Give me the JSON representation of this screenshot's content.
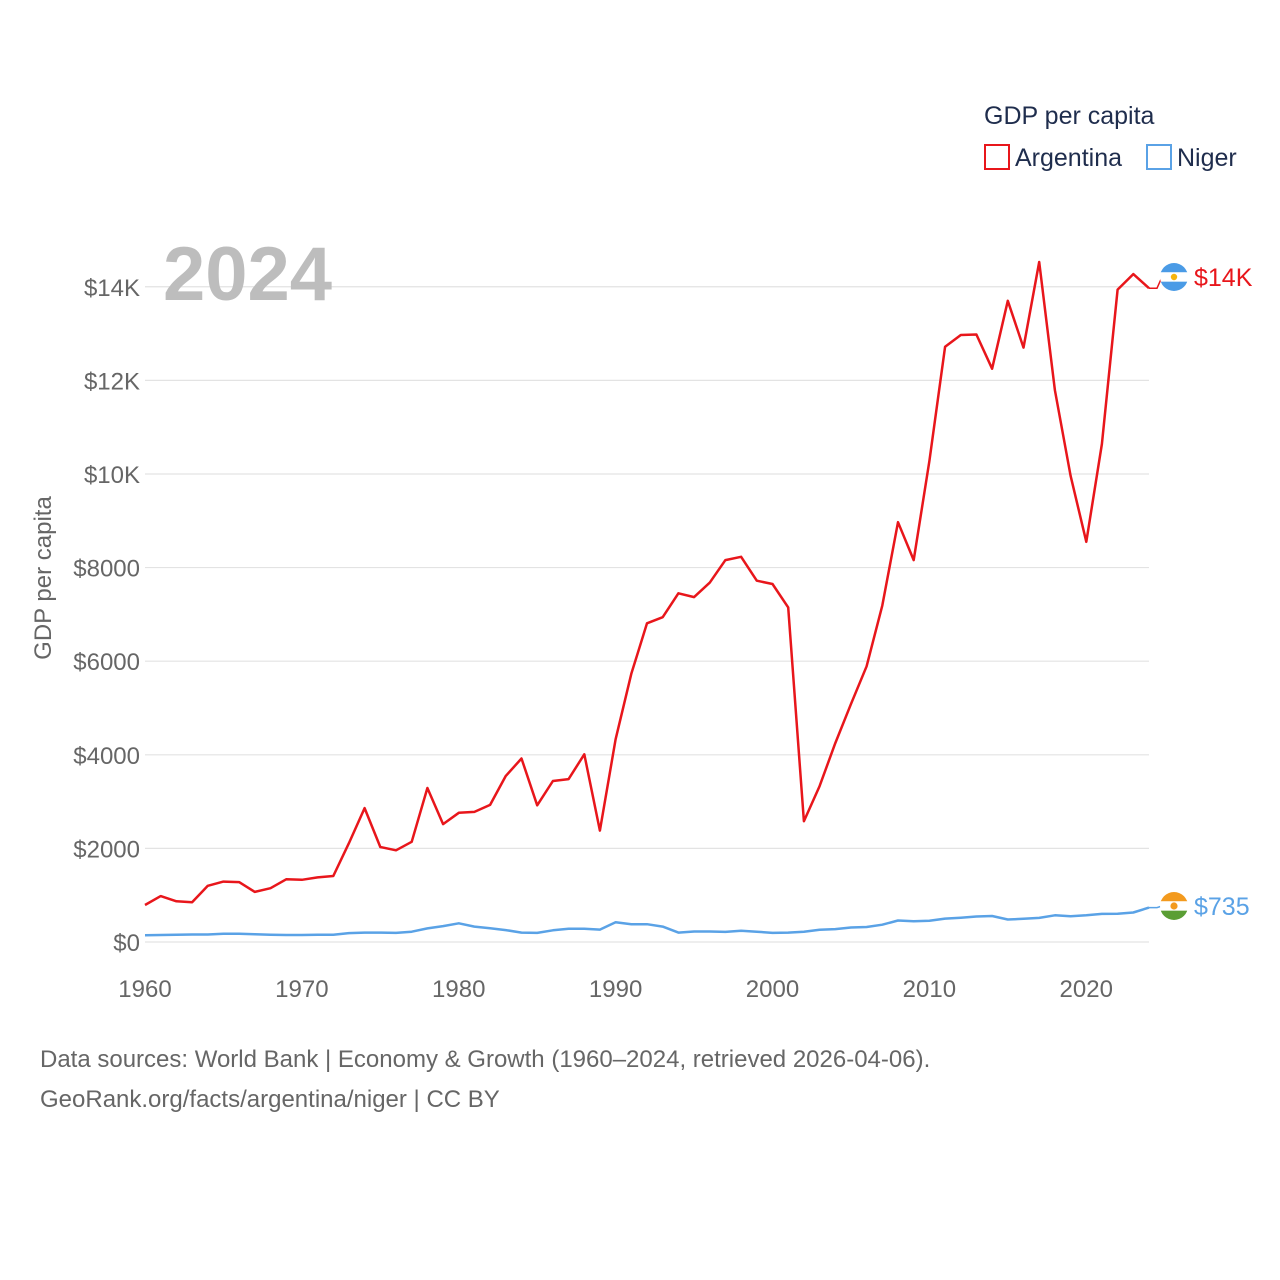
{
  "chart_data": {
    "type": "line",
    "legend_title": "GDP per capita",
    "ylabel": "GDP per capita",
    "year_label": "2024",
    "ylim": [
      0,
      14700
    ],
    "xlim": [
      1960,
      2024
    ],
    "y_ticks": [
      0,
      2000,
      4000,
      6000,
      8000,
      10000,
      12000,
      14000
    ],
    "y_tick_labels": [
      "$0",
      "$2000",
      "$4000",
      "$6000",
      "$8000",
      "$10K",
      "$12K",
      "$14K"
    ],
    "x_ticks": [
      1960,
      1970,
      1980,
      1990,
      2000,
      2010,
      2020
    ],
    "x_tick_labels": [
      "1960",
      "1970",
      "1980",
      "1990",
      "2000",
      "2010",
      "2020"
    ],
    "x": [
      1960,
      1961,
      1962,
      1963,
      1964,
      1965,
      1966,
      1967,
      1968,
      1969,
      1970,
      1971,
      1972,
      1973,
      1974,
      1975,
      1976,
      1977,
      1978,
      1979,
      1980,
      1981,
      1982,
      1983,
      1984,
      1985,
      1986,
      1987,
      1988,
      1989,
      1990,
      1991,
      1992,
      1993,
      1994,
      1995,
      1996,
      1997,
      1998,
      1999,
      2000,
      2001,
      2002,
      2003,
      2004,
      2005,
      2006,
      2007,
      2008,
      2009,
      2010,
      2011,
      2012,
      2013,
      2014,
      2015,
      2016,
      2017,
      2018,
      2019,
      2020,
      2021,
      2022,
      2023,
      2024
    ],
    "series": [
      {
        "name": "Argentina",
        "color": "#e8161b",
        "end_label": "$14K",
        "flag": "argentina-flag",
        "values": [
          790,
          980,
          870,
          850,
          1200,
          1290,
          1280,
          1070,
          1150,
          1340,
          1330,
          1380,
          1410,
          2110,
          2860,
          2030,
          1960,
          2140,
          3290,
          2520,
          2760,
          2780,
          2930,
          3550,
          3920,
          2920,
          3440,
          3480,
          4010,
          2380,
          4330,
          5730,
          6810,
          6940,
          7450,
          7370,
          7680,
          8160,
          8230,
          7720,
          7650,
          7150,
          2580,
          3330,
          4250,
          5080,
          5890,
          7190,
          8970,
          8160,
          10280,
          12720,
          12970,
          12980,
          12250,
          13700,
          12700,
          14530,
          11790,
          9960,
          8550,
          10640,
          13940,
          14270,
          13970
        ]
      },
      {
        "name": "Niger",
        "color": "#5aa2e6",
        "end_label": "$735",
        "flag": "niger-flag",
        "values": [
          145,
          150,
          155,
          160,
          160,
          175,
          175,
          165,
          155,
          150,
          150,
          155,
          155,
          190,
          200,
          200,
          195,
          220,
          290,
          340,
          400,
          330,
          295,
          255,
          200,
          195,
          250,
          285,
          285,
          265,
          420,
          380,
          380,
          330,
          200,
          225,
          225,
          215,
          240,
          220,
          195,
          200,
          220,
          260,
          275,
          310,
          320,
          370,
          460,
          445,
          455,
          500,
          520,
          545,
          555,
          480,
          495,
          515,
          570,
          550,
          570,
          600,
          605,
          630,
          735
        ]
      }
    ]
  },
  "footer": {
    "line1": "Data sources: World Bank | Economy & Growth (1960–2024, retrieved 2026-04-06).",
    "line2": "GeoRank.org/facts/argentina/niger | CC BY"
  }
}
